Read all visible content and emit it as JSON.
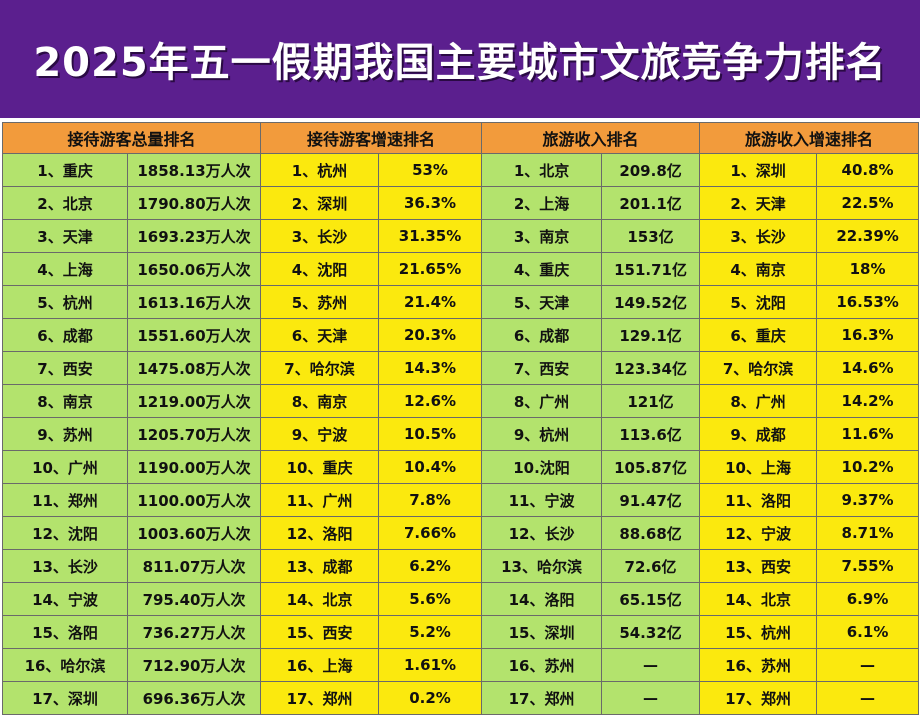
{
  "title": "2025年五一假期我国主要城市文旅竞争力排名",
  "headers": [
    "接待游客总量排名",
    "接待游客增速排名",
    "旅游收入排名",
    "旅游收入增速排名"
  ],
  "rows": [
    [
      "1、重庆",
      "1858.13万人次",
      "1、杭州",
      "53%",
      "1、北京",
      "209.8亿",
      "1、深圳",
      "40.8%"
    ],
    [
      "2、北京",
      "1790.80万人次",
      "2、深圳",
      "36.3%",
      "2、上海",
      "201.1亿",
      "2、天津",
      "22.5%"
    ],
    [
      "3、天津",
      "1693.23万人次",
      "3、长沙",
      "31.35%",
      "3、南京",
      "153亿",
      "3、长沙",
      "22.39%"
    ],
    [
      "4、上海",
      "1650.06万人次",
      "4、沈阳",
      "21.65%",
      "4、重庆",
      "151.71亿",
      "4、南京",
      "18%"
    ],
    [
      "5、杭州",
      "1613.16万人次",
      "5、苏州",
      "21.4%",
      "5、天津",
      "149.52亿",
      "5、沈阳",
      "16.53%"
    ],
    [
      "6、成都",
      "1551.60万人次",
      "6、天津",
      "20.3%",
      "6、成都",
      "129.1亿",
      "6、重庆",
      "16.3%"
    ],
    [
      "7、西安",
      "1475.08万人次",
      "7、哈尔滨",
      "14.3%",
      "7、西安",
      "123.34亿",
      "7、哈尔滨",
      "14.6%"
    ],
    [
      "8、南京",
      "1219.00万人次",
      "8、南京",
      "12.6%",
      "8、广州",
      "121亿",
      "8、广州",
      "14.2%"
    ],
    [
      "9、苏州",
      "1205.70万人次",
      "9、宁波",
      "10.5%",
      "9、杭州",
      "113.6亿",
      "9、成都",
      "11.6%"
    ],
    [
      "10、广州",
      "1190.00万人次",
      "10、重庆",
      "10.4%",
      "10.沈阳",
      "105.87亿",
      "10、上海",
      "10.2%"
    ],
    [
      "11、郑州",
      "1100.00万人次",
      "11、广州",
      "7.8%",
      "11、宁波",
      "91.47亿",
      "11、洛阳",
      "9.37%"
    ],
    [
      "12、沈阳",
      "1003.60万人次",
      "12、洛阳",
      "7.66%",
      "12、长沙",
      "88.68亿",
      "12、宁波",
      "8.71%"
    ],
    [
      "13、长沙",
      "811.07万人次",
      "13、成都",
      "6.2%",
      "13、哈尔滨",
      "72.6亿",
      "13、西安",
      "7.55%"
    ],
    [
      "14、宁波",
      "795.40万人次",
      "14、北京",
      "5.6%",
      "14、洛阳",
      "65.15亿",
      "14、北京",
      "6.9%"
    ],
    [
      "15、洛阳",
      "736.27万人次",
      "15、西安",
      "5.2%",
      "15、深圳",
      "54.32亿",
      "15、杭州",
      "6.1%"
    ],
    [
      "16、哈尔滨",
      "712.90万人次",
      "16、上海",
      "1.61%",
      "16、苏州",
      "—",
      "16、苏州",
      "—"
    ],
    [
      "17、深圳",
      "696.36万人次",
      "17、郑州",
      "0.2%",
      "17、郑州",
      "—",
      "17、郑州",
      "—"
    ]
  ],
  "colors": {
    "title_bg": "#5b1f8e",
    "header_bg": "#f29b3c",
    "green": "#b3e36d",
    "yellow": "#fbe90e"
  }
}
